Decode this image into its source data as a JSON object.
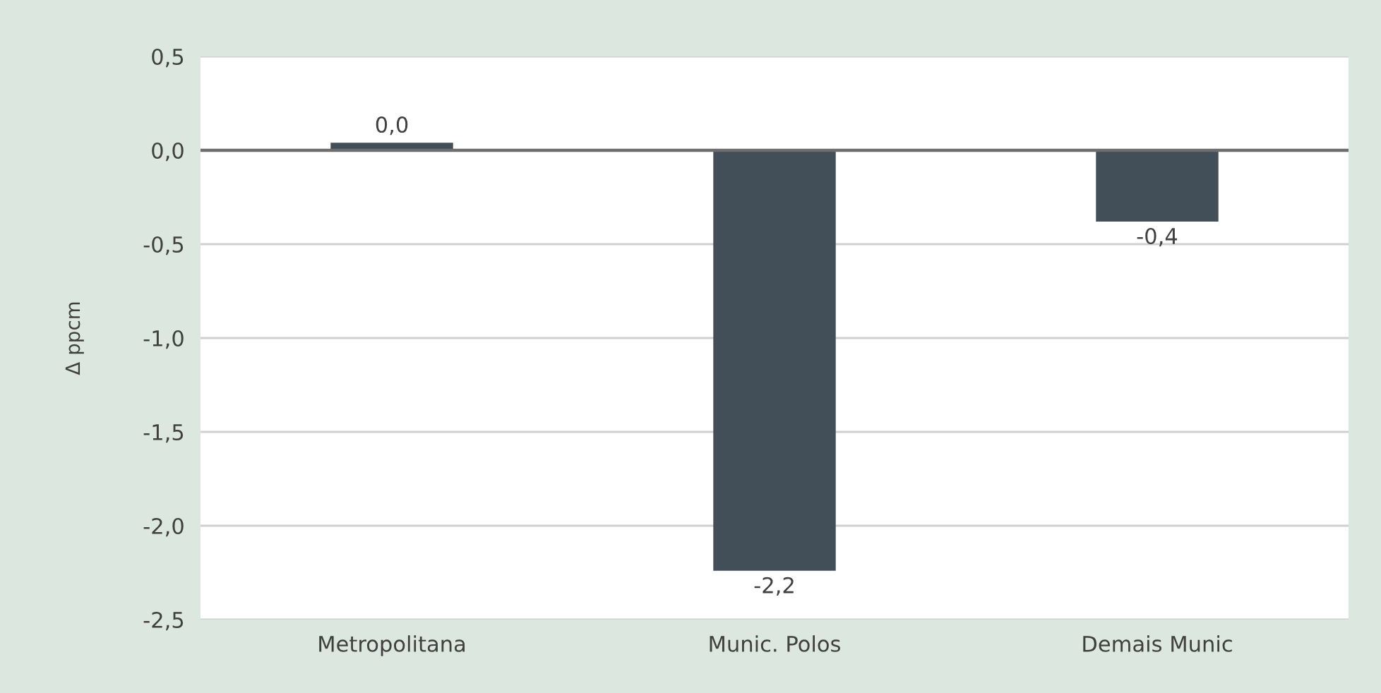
{
  "chart_data": {
    "type": "bar",
    "ylabel": "Δ ppcm",
    "categories": [
      "Metropolitana",
      "Munic. Polos",
      "Demais Munic"
    ],
    "values": [
      0.04,
      -2.24,
      -0.38
    ],
    "value_labels": [
      "0,0",
      "-2,2",
      "-0,4"
    ],
    "color": "#424f59",
    "ylim": [
      -2.5,
      0.5
    ],
    "yticks": [
      {
        "value": 0.5,
        "label": "0,5"
      },
      {
        "value": 0.0,
        "label": "0,0"
      },
      {
        "value": -0.5,
        "label": "-0,5"
      },
      {
        "value": -1.0,
        "label": "-1,0"
      },
      {
        "value": -1.5,
        "label": "-1,5"
      },
      {
        "value": -2.0,
        "label": "-2,0"
      },
      {
        "value": -2.5,
        "label": "-2,5"
      }
    ],
    "grid": "y",
    "legend": false
  }
}
